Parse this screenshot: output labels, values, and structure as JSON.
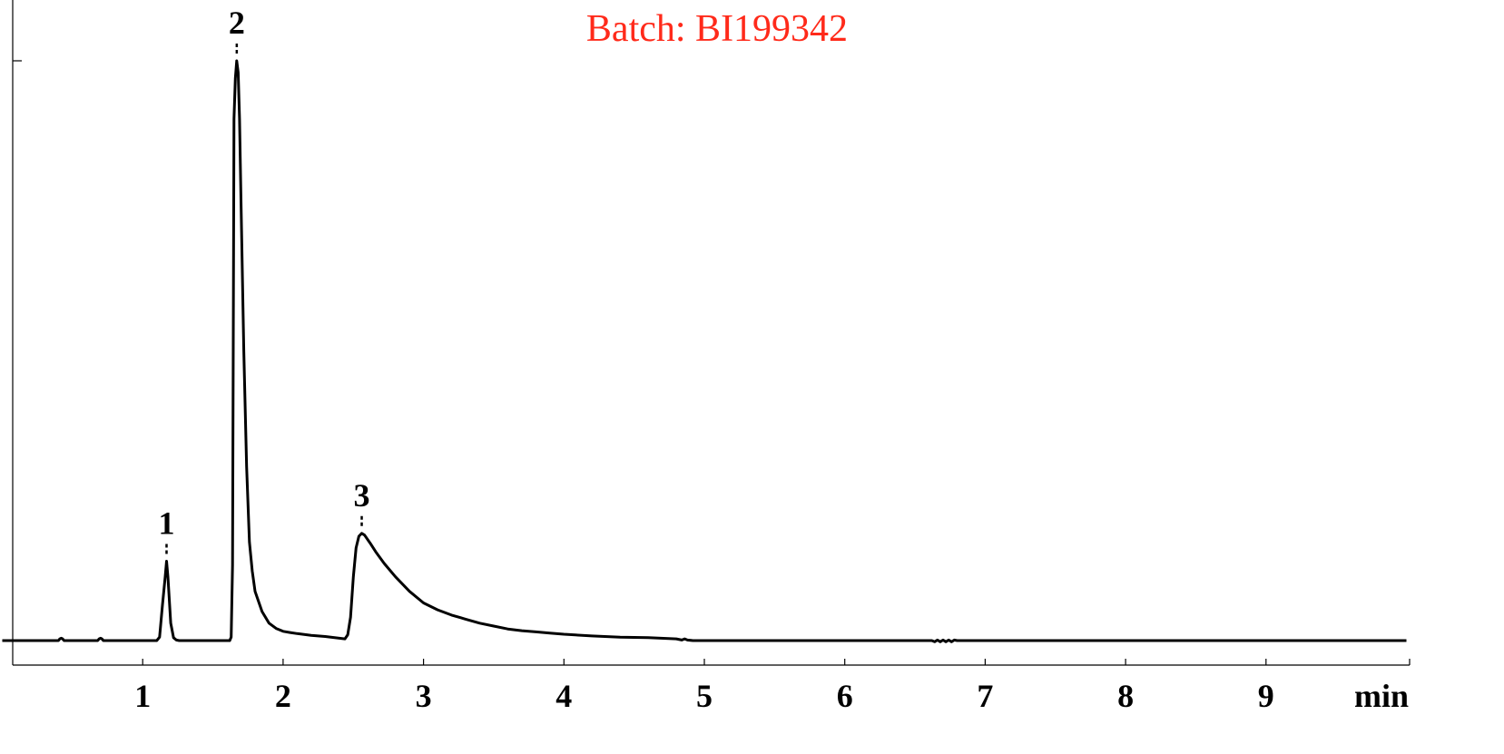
{
  "chart_data": {
    "type": "line",
    "title": "",
    "annotation": "Batch: BI199342",
    "annotation_color": "#ff2a1a",
    "line_color": "#000000",
    "xlabel": "min",
    "ylabel": "",
    "xlim": [
      0,
      10
    ],
    "ylim": [
      0,
      1
    ],
    "grid": false,
    "x_ticks": [
      "1",
      "2",
      "3",
      "4",
      "5",
      "6",
      "7",
      "8",
      "9"
    ],
    "peaks": [
      {
        "label": "1",
        "x": 1.17,
        "y": 0.137
      },
      {
        "label": "2",
        "x": 1.67,
        "y": 1.0
      },
      {
        "label": "3",
        "x": 2.56,
        "y": 0.185
      }
    ],
    "series": [
      {
        "x": [
          0.0,
          0.4,
          0.41,
          0.42,
          0.43,
          0.44,
          0.68,
          0.69,
          0.7,
          0.71,
          0.72,
          1.1,
          1.12,
          1.14,
          1.16,
          1.17,
          1.18,
          1.2,
          1.22,
          1.24,
          1.26,
          1.62,
          1.63,
          1.64,
          1.65,
          1.66,
          1.67,
          1.68,
          1.69,
          1.7,
          1.72,
          1.74,
          1.76,
          1.78,
          1.8,
          1.85,
          1.9,
          1.95,
          2.0,
          2.05,
          2.1,
          2.2,
          2.3,
          2.4,
          2.44,
          2.46,
          2.48,
          2.5,
          2.52,
          2.54,
          2.56,
          2.58,
          2.62,
          2.66,
          2.72,
          2.8,
          2.9,
          3.0,
          3.1,
          3.2,
          3.3,
          3.4,
          3.5,
          3.6,
          3.7,
          3.8,
          3.9,
          4.0,
          4.2,
          4.4,
          4.6,
          4.8,
          4.84,
          4.86,
          4.88,
          4.92,
          5.0,
          5.5,
          6.0,
          6.5,
          6.62,
          6.64,
          6.66,
          6.68,
          6.7,
          6.72,
          6.74,
          6.76,
          6.78,
          6.8,
          7.0,
          8.0,
          9.0,
          10.0
        ],
        "values": [
          0.0,
          0.0,
          0.003,
          0.004,
          0.003,
          0.0,
          0.0,
          0.003,
          0.004,
          0.003,
          0.0,
          0.0,
          0.006,
          0.06,
          0.11,
          0.137,
          0.11,
          0.03,
          0.005,
          0.001,
          0.0,
          0.0,
          0.006,
          0.13,
          0.9,
          0.97,
          1.0,
          0.98,
          0.9,
          0.76,
          0.5,
          0.3,
          0.17,
          0.12,
          0.085,
          0.05,
          0.03,
          0.021,
          0.016,
          0.014,
          0.012,
          0.009,
          0.007,
          0.004,
          0.003,
          0.01,
          0.04,
          0.11,
          0.16,
          0.18,
          0.185,
          0.182,
          0.168,
          0.153,
          0.133,
          0.11,
          0.085,
          0.065,
          0.053,
          0.044,
          0.037,
          0.03,
          0.025,
          0.02,
          0.017,
          0.015,
          0.013,
          0.011,
          0.008,
          0.006,
          0.005,
          0.003,
          0.001,
          0.003,
          0.001,
          0.0,
          0.0,
          0.0,
          0.0,
          0.0,
          0.0,
          -0.002,
          0.001,
          -0.002,
          0.001,
          -0.002,
          0.001,
          -0.002,
          0.001,
          0.0,
          0.0,
          0.0,
          0.0,
          0.0
        ]
      }
    ]
  }
}
